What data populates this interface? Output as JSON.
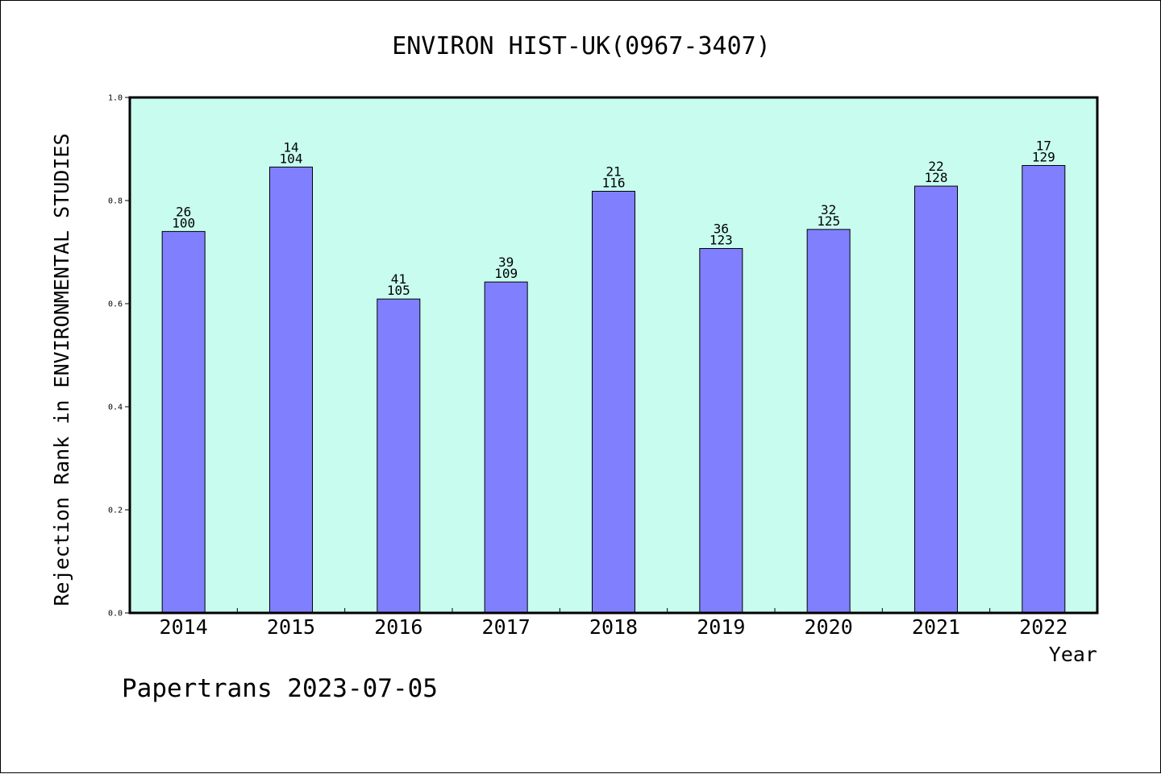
{
  "chart_data": {
    "type": "bar",
    "title": "ENVIRON HIST-UK(0967-3407)",
    "xlabel": "Year",
    "ylabel": "Rejection Rank in ENVIRONMENTAL STUDIES",
    "categories": [
      "2014",
      "2015",
      "2016",
      "2017",
      "2018",
      "2019",
      "2020",
      "2021",
      "2022"
    ],
    "values": [
      0.74,
      0.865,
      0.609,
      0.642,
      0.818,
      0.707,
      0.744,
      0.828,
      0.868
    ],
    "bar_labels_top": [
      "26",
      "14",
      "41",
      "39",
      "21",
      "36",
      "32",
      "22",
      "17"
    ],
    "bar_labels_bottom": [
      "100",
      "104",
      "105",
      "109",
      "116",
      "123",
      "125",
      "128",
      "129"
    ],
    "ylim": [
      0.0,
      1.0
    ],
    "yticks": [
      0.0,
      0.2,
      0.4,
      0.6,
      0.8,
      1.0
    ],
    "ytick_labels": [
      "0.0",
      "0.2",
      "0.4",
      "0.6",
      "0.8",
      "1.0"
    ],
    "grid": false,
    "colors": {
      "plot_background": "#c8fcee",
      "bar_fill": "#8080ff",
      "bar_stroke": "#000000",
      "axis": "#000000"
    }
  },
  "footer": {
    "credit": "Papertrans 2023-07-05"
  }
}
